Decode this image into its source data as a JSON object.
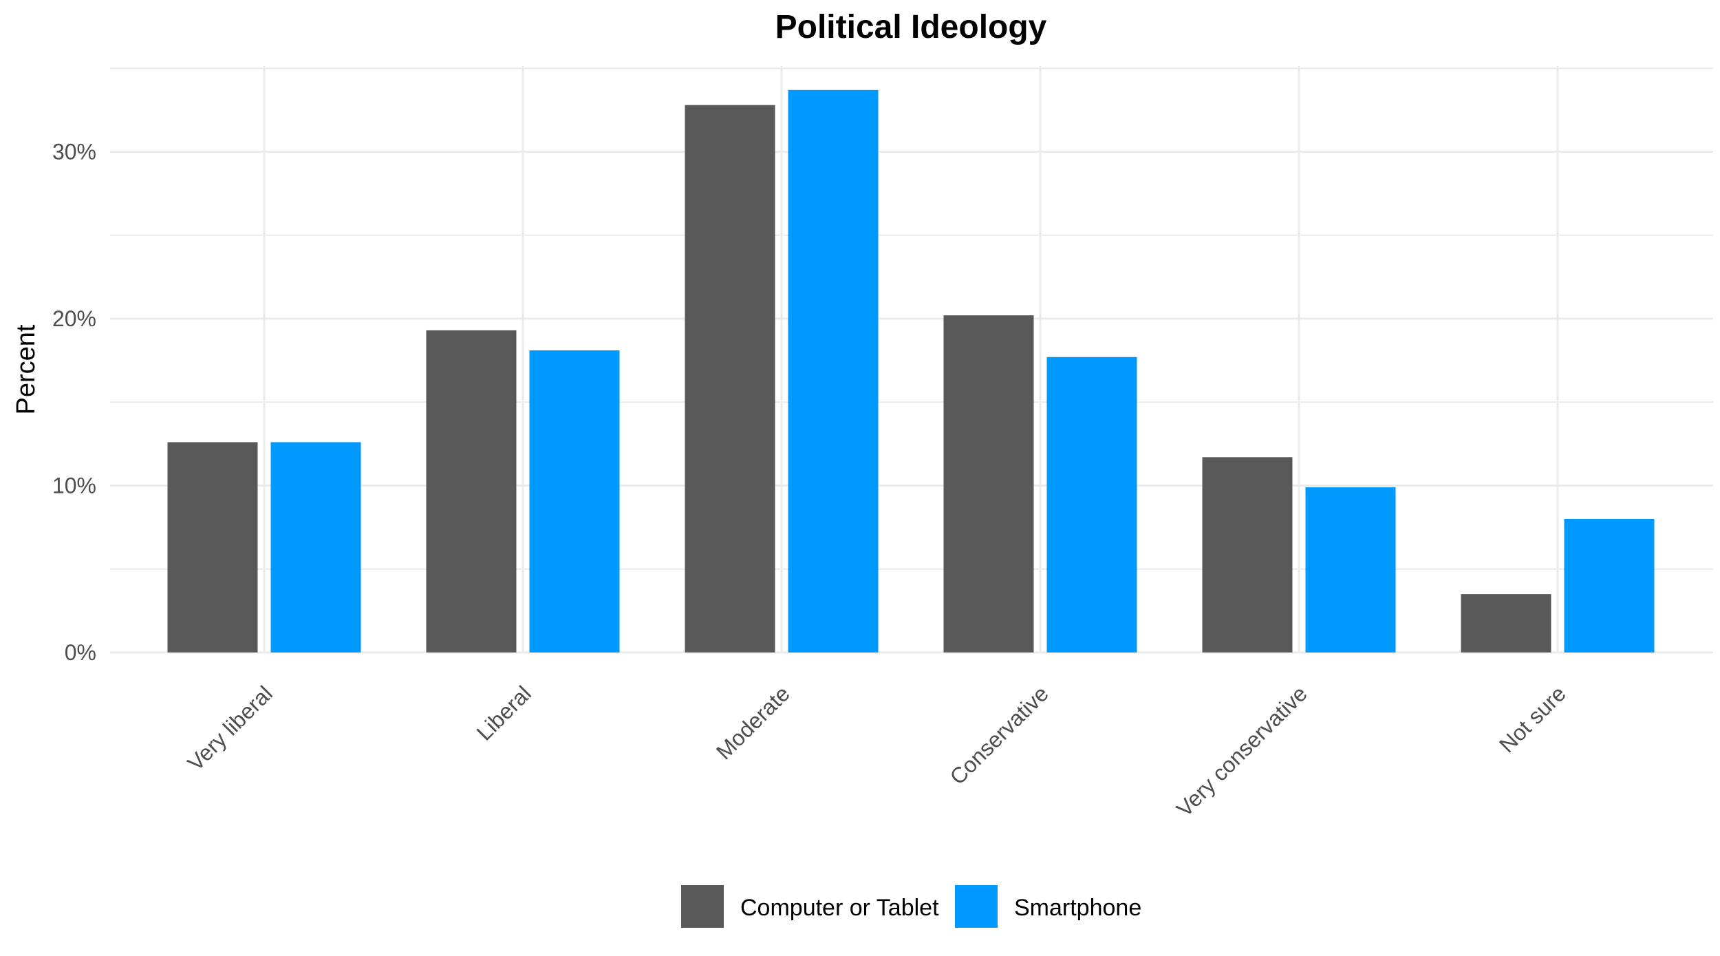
{
  "chart_data": {
    "type": "bar",
    "title": "Political Ideology",
    "xlabel": "",
    "ylabel": "Percent",
    "categories": [
      "Very liberal",
      "Liberal",
      "Moderate",
      "Conservative",
      "Very conservative",
      "Not sure"
    ],
    "series": [
      {
        "name": "Computer or Tablet",
        "color": "#595959",
        "values": [
          12.6,
          19.3,
          32.8,
          20.2,
          11.7,
          3.5
        ]
      },
      {
        "name": "Smartphone",
        "color": "#0099ff",
        "values": [
          12.6,
          18.1,
          33.7,
          17.7,
          9.9,
          8.0
        ]
      }
    ],
    "ylim": [
      0,
      35
    ],
    "yticks": [
      0,
      10,
      20,
      30
    ],
    "ytick_labels": [
      "0%",
      "10%",
      "20%",
      "30%"
    ],
    "grid": true,
    "legend_position": "bottom"
  }
}
